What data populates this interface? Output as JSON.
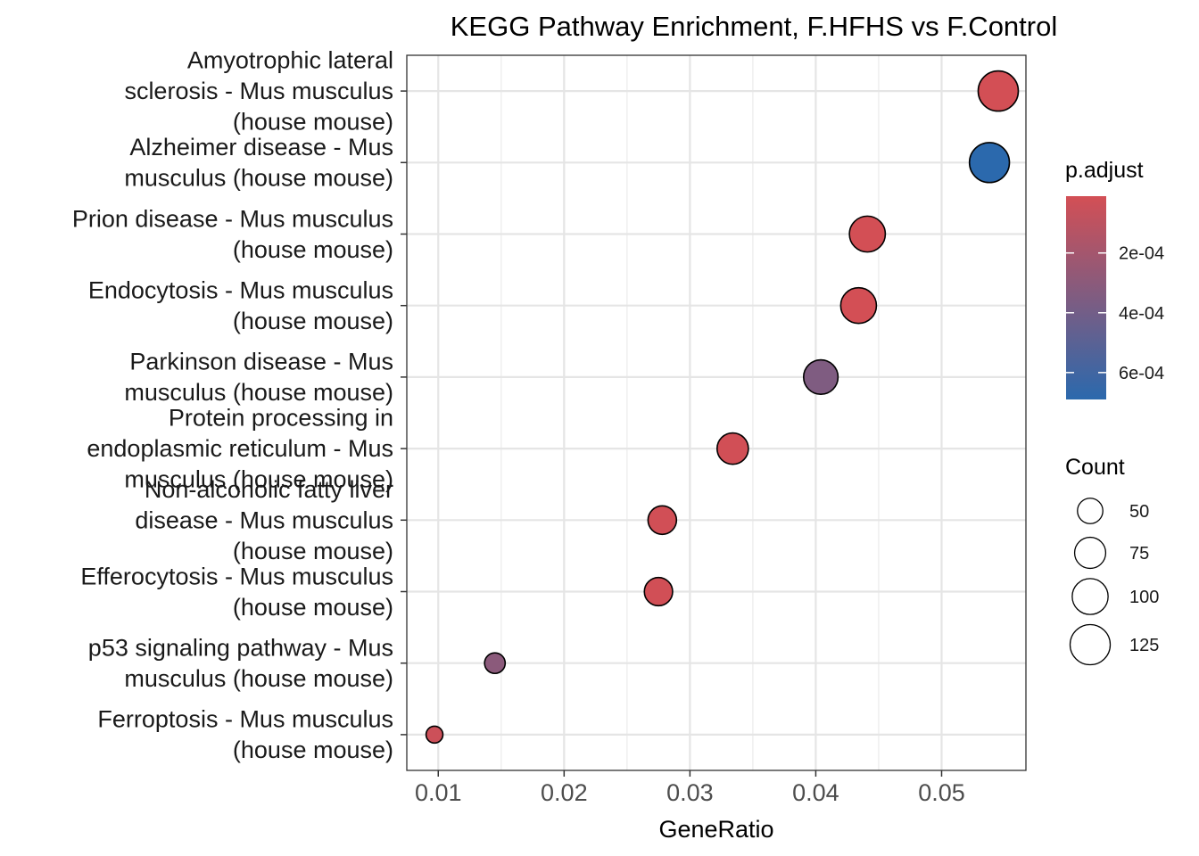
{
  "chart_data": {
    "type": "scatter",
    "title": "KEGG Pathway Enrichment, F.HFHS vs F.Control",
    "xlabel": "GeneRatio",
    "ylabel": "",
    "xlim": [
      0.0075,
      0.0567
    ],
    "xticks": [
      "0.01",
      "0.02",
      "0.03",
      "0.04",
      "0.05"
    ],
    "xtick_values": [
      0.01,
      0.02,
      0.03,
      0.04,
      0.05
    ],
    "grid": true,
    "categories": [
      [
        "Amyotrophic lateral",
        "sclerosis - Mus musculus",
        "(house mouse)"
      ],
      [
        "Alzheimer disease - Mus",
        "musculus (house mouse)"
      ],
      [
        "Prion disease - Mus musculus",
        "(house mouse)"
      ],
      [
        "Endocytosis - Mus musculus",
        "(house mouse)"
      ],
      [
        "Parkinson disease - Mus",
        "musculus (house mouse)"
      ],
      [
        "Protein processing in",
        "endoplasmic reticulum - Mus",
        "musculus (house mouse)"
      ],
      [
        "Non-alcoholic fatty liver",
        "disease - Mus musculus",
        "(house mouse)"
      ],
      [
        "Efferocytosis - Mus musculus",
        "(house mouse)"
      ],
      [
        "p53 signaling pathway - Mus",
        "musculus (house mouse)"
      ],
      [
        "Ferroptosis - Mus musculus",
        "(house mouse)"
      ]
    ],
    "points": [
      {
        "gene_ratio": 0.0545,
        "count": 125,
        "p_adjust": 1e-05
      },
      {
        "gene_ratio": 0.0538,
        "count": 124,
        "p_adjust": 0.00069
      },
      {
        "gene_ratio": 0.0441,
        "count": 100,
        "p_adjust": 1e-05
      },
      {
        "gene_ratio": 0.0434,
        "count": 99,
        "p_adjust": 1e-05
      },
      {
        "gene_ratio": 0.0404,
        "count": 92,
        "p_adjust": 0.00035
      },
      {
        "gene_ratio": 0.0334,
        "count": 76,
        "p_adjust": 2e-05
      },
      {
        "gene_ratio": 0.0278,
        "count": 63,
        "p_adjust": 2e-05
      },
      {
        "gene_ratio": 0.0275,
        "count": 62,
        "p_adjust": 2e-05
      },
      {
        "gene_ratio": 0.0145,
        "count": 33,
        "p_adjust": 0.0003
      },
      {
        "gene_ratio": 0.0097,
        "count": 22,
        "p_adjust": 4e-05
      }
    ],
    "color_legend": {
      "title": "p.adjust",
      "low_color": "#d34f55",
      "high_color": "#2b69ad",
      "range": [
        1e-05,
        0.00069
      ],
      "ticks": [
        "2e-04",
        "4e-04",
        "6e-04"
      ],
      "tick_values": [
        0.0002,
        0.0004,
        0.0006
      ]
    },
    "size_legend": {
      "title": "Count",
      "labels": [
        "50",
        "75",
        "100",
        "125"
      ],
      "values": [
        50,
        75,
        100,
        125
      ]
    }
  }
}
